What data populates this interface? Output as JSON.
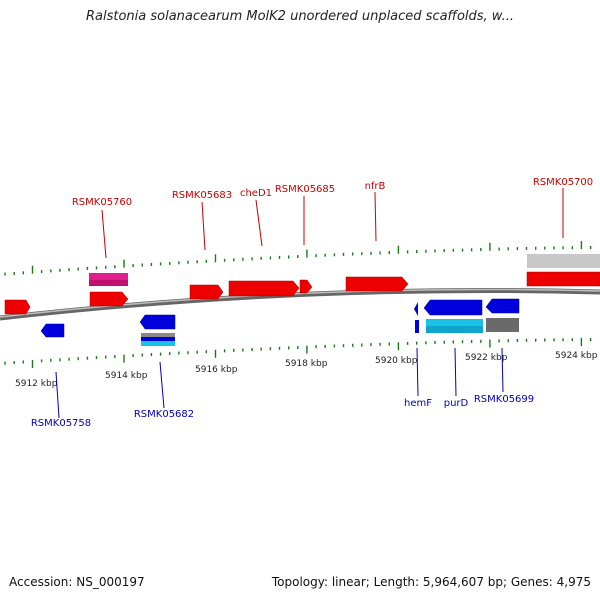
{
  "title": "Ralstonia solanacearum MolK2 unordered unplaced scaffolds, w...",
  "footer": {
    "accession": "Accession: NS_000197",
    "topology": "Topology: linear; Length: 5,964,607 bp; Genes: 4,975"
  },
  "colors": {
    "forward_gene": "#ee0000",
    "reverse_gene": "#0000dd",
    "forward_label": "#cc0000",
    "reverse_label": "#0000bb",
    "tick": "#1a7a1a",
    "backbone": "#7a7a7a",
    "pink_feature": "#e0208a",
    "cyan_feature": "#19c3e8",
    "gray_feature": "#6a6a6a",
    "light_gray_feature": "#c8c8c8"
  },
  "scale_labels": [
    "5912 kbp",
    "5914 kbp",
    "5916 kbp",
    "5918 kbp",
    "5920 kbp",
    "5922 kbp",
    "5924 kbp"
  ],
  "forward_gene_labels": [
    "RSMK05760",
    "RSMK05683",
    "cheD1",
    "RSMK05685",
    "nfrB",
    "RSMK05700"
  ],
  "reverse_gene_labels": [
    "RSMK05758",
    "RSMK05682",
    "hemF",
    "purD",
    "RSMK05699"
  ]
}
